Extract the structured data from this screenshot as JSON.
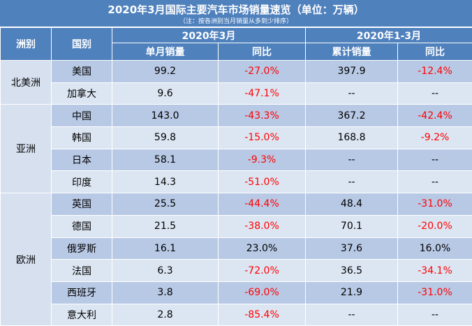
{
  "title": "2020年3月国际主要汽车市场销量速览（单位：万辆）",
  "subtitle": "（注：按各洲别当月销量从多到少排序）",
  "headers": {
    "region": "洲别",
    "country": "国别",
    "period_month": "2020年3月",
    "period_ytd": "2020年1-3月",
    "monthly_sales": "单月销量",
    "yoy_month": "同比",
    "cumulative_sales": "累计销量",
    "yoy_ytd": "同比"
  },
  "regions": [
    {
      "name": "北美洲",
      "rows": [
        {
          "country": "美国",
          "monthly": "99.2",
          "yoy_m": "-27.0%",
          "cumulative": "397.9",
          "yoy_c": "-12.4%"
        },
        {
          "country": "加拿大",
          "monthly": "9.6",
          "yoy_m": "-47.1%",
          "cumulative": "--",
          "yoy_c": "--"
        }
      ]
    },
    {
      "name": "亚洲",
      "rows": [
        {
          "country": "中国",
          "monthly": "143.0",
          "yoy_m": "-43.3%",
          "cumulative": "367.2",
          "yoy_c": "-42.4%"
        },
        {
          "country": "韩国",
          "monthly": "59.8",
          "yoy_m": "-15.0%",
          "cumulative": "168.8",
          "yoy_c": "-9.2%"
        },
        {
          "country": "日本",
          "monthly": "58.1",
          "yoy_m": "-9.3%",
          "cumulative": "--",
          "yoy_c": "--"
        },
        {
          "country": "印度",
          "monthly": "14.3",
          "yoy_m": "-51.0%",
          "cumulative": "--",
          "yoy_c": "--"
        }
      ]
    },
    {
      "name": "欧洲",
      "rows": [
        {
          "country": "英国",
          "monthly": "25.5",
          "yoy_m": "-44.4%",
          "cumulative": "48.4",
          "yoy_c": "-31.0%"
        },
        {
          "country": "德国",
          "monthly": "21.5",
          "yoy_m": "-38.0%",
          "cumulative": "70.1",
          "yoy_c": "-20.0%"
        },
        {
          "country": "俄罗斯",
          "monthly": "16.1",
          "yoy_m": "23.0%",
          "cumulative": "37.6",
          "yoy_c": "16.0%"
        },
        {
          "country": "法国",
          "monthly": "6.3",
          "yoy_m": "-72.0%",
          "cumulative": "36.5",
          "yoy_c": "-34.1%"
        },
        {
          "country": "西班牙",
          "monthly": "3.8",
          "yoy_m": "-69.0%",
          "cumulative": "21.9",
          "yoy_c": "-31.0%"
        },
        {
          "country": "意大利",
          "monthly": "2.8",
          "yoy_m": "-85.4%",
          "cumulative": "--",
          "yoy_c": "--"
        }
      ]
    }
  ],
  "colors": {
    "header_bg": "#4f81bd",
    "row_light": "#dce6f2",
    "row_dark": "#b8c9e5",
    "negative_text": "#ff0000"
  }
}
